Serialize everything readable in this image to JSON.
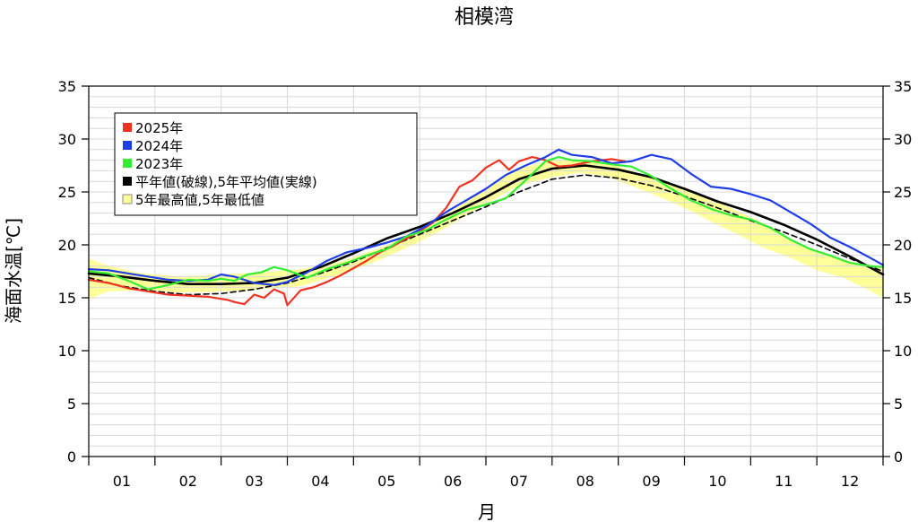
{
  "chart_data": {
    "type": "line",
    "title": "相模湾",
    "xlabel": "月",
    "ylabel": "海面水温[℃]",
    "ylim": [
      0,
      35
    ],
    "yticks": [
      "0",
      "5",
      "10",
      "15",
      "20",
      "25",
      "30",
      "35"
    ],
    "month_labels": [
      "01",
      "02",
      "03",
      "04",
      "05",
      "06",
      "07",
      "08",
      "09",
      "10",
      "11",
      "12"
    ],
    "xlim": [
      0,
      12
    ],
    "grid": true,
    "legend_position": "top-left",
    "legend": [
      {
        "label": "2025年",
        "color": "#ee3322"
      },
      {
        "label": "2024年",
        "color": "#1f3ee6"
      },
      {
        "label": "2023年",
        "color": "#33ee33"
      },
      {
        "label": "平年値(破線),5年平均値(実線)",
        "color": "#000000"
      },
      {
        "label": "5年最高値,5年最低値",
        "color": "#ffff99"
      }
    ],
    "band": {
      "name": "5年最高値,5年最低値",
      "x": [
        0.0,
        0.3,
        0.8,
        1.4,
        2.0,
        2.6,
        3.2,
        3.8,
        4.4,
        5.0,
        5.5,
        6.0,
        6.5,
        7.0,
        7.4,
        7.8,
        8.2,
        8.6,
        9.0,
        9.4,
        9.8,
        10.2,
        10.6,
        11.0,
        11.4,
        11.8,
        12.0
      ],
      "high": [
        18.7,
        18.0,
        17.3,
        17.0,
        17.2,
        17.4,
        17.7,
        18.4,
        19.7,
        21.4,
        23.2,
        25.4,
        27.2,
        28.0,
        28.1,
        27.8,
        27.0,
        26.2,
        25.4,
        24.3,
        23.2,
        22.0,
        20.6,
        19.4,
        18.6,
        18.0,
        17.8
      ],
      "low": [
        14.9,
        15.6,
        15.7,
        15.5,
        15.6,
        15.8,
        16.1,
        17.2,
        18.6,
        20.3,
        22.0,
        23.9,
        25.6,
        26.4,
        26.8,
        26.5,
        25.6,
        24.6,
        23.5,
        22.2,
        21.0,
        19.7,
        18.8,
        17.6,
        16.9,
        15.7,
        15.0
      ]
    },
    "series": [
      {
        "name": "平年値(破線)",
        "color": "#000000",
        "dash": true,
        "x": [
          0.0,
          0.5,
          1.0,
          1.5,
          2.0,
          2.5,
          3.0,
          3.5,
          4.0,
          4.5,
          5.0,
          5.5,
          6.0,
          6.5,
          7.0,
          7.5,
          8.0,
          8.5,
          9.0,
          9.5,
          10.0,
          10.5,
          11.0,
          11.5,
          12.0
        ],
        "y": [
          16.9,
          16.1,
          15.6,
          15.3,
          15.4,
          15.8,
          16.4,
          17.3,
          18.4,
          19.7,
          21.0,
          22.3,
          23.6,
          25.0,
          26.2,
          26.6,
          26.3,
          25.6,
          24.6,
          23.5,
          22.3,
          21.2,
          20.0,
          18.7,
          17.5
        ]
      },
      {
        "name": "5年平均値(実線)",
        "color": "#000000",
        "dash": false,
        "x": [
          0.0,
          0.5,
          1.0,
          1.5,
          2.0,
          2.5,
          3.0,
          3.5,
          4.0,
          4.5,
          5.0,
          5.5,
          6.0,
          6.5,
          7.0,
          7.5,
          8.0,
          8.5,
          9.0,
          9.5,
          10.0,
          10.5,
          11.0,
          11.5,
          12.0
        ],
        "y": [
          17.3,
          17.0,
          16.6,
          16.3,
          16.3,
          16.4,
          16.9,
          17.9,
          19.2,
          20.6,
          21.7,
          23.0,
          24.5,
          26.2,
          27.2,
          27.5,
          27.1,
          26.4,
          25.3,
          24.1,
          23.1,
          21.9,
          20.5,
          18.9,
          17.2
        ]
      },
      {
        "name": "2025年",
        "color": "#ee3322",
        "dash": false,
        "x": [
          0.0,
          0.3,
          0.6,
          0.9,
          1.2,
          1.5,
          1.8,
          2.1,
          2.2,
          2.35,
          2.5,
          2.65,
          2.8,
          2.95,
          3.0,
          3.2,
          3.4,
          3.6,
          3.8,
          4.0,
          4.2,
          4.4,
          4.6,
          4.8,
          5.0,
          5.2,
          5.4,
          5.6,
          5.8,
          6.0,
          6.2,
          6.35,
          6.5,
          6.7,
          6.9,
          7.1,
          7.3,
          7.6,
          7.9,
          8.1
        ],
        "y": [
          16.7,
          16.4,
          15.9,
          15.6,
          15.3,
          15.2,
          15.1,
          14.8,
          14.6,
          14.4,
          15.3,
          15.0,
          15.8,
          15.4,
          14.3,
          15.7,
          16.0,
          16.5,
          17.1,
          17.8,
          18.5,
          19.3,
          19.9,
          20.6,
          21.3,
          22.1,
          23.5,
          25.5,
          26.1,
          27.3,
          28.0,
          27.1,
          27.9,
          28.3,
          28.0,
          27.4,
          27.5,
          27.9,
          28.1,
          27.9
        ]
      },
      {
        "name": "2024年",
        "color": "#1f3ee6",
        "dash": false,
        "x": [
          0.0,
          0.3,
          0.6,
          0.9,
          1.2,
          1.5,
          1.8,
          2.0,
          2.2,
          2.5,
          2.8,
          3.0,
          3.3,
          3.6,
          3.9,
          4.2,
          4.5,
          4.8,
          5.1,
          5.4,
          5.7,
          6.0,
          6.3,
          6.6,
          6.9,
          7.1,
          7.3,
          7.6,
          7.9,
          8.2,
          8.5,
          8.8,
          9.1,
          9.4,
          9.7,
          10.0,
          10.3,
          10.6,
          10.9,
          11.2,
          11.5,
          11.8,
          12.0
        ],
        "y": [
          17.7,
          17.6,
          17.3,
          17.0,
          16.7,
          16.6,
          16.7,
          17.2,
          17.0,
          16.4,
          16.2,
          16.5,
          17.4,
          18.5,
          19.3,
          19.7,
          20.2,
          20.8,
          21.8,
          23.1,
          24.2,
          25.3,
          26.6,
          27.5,
          28.3,
          29.0,
          28.5,
          28.3,
          27.7,
          27.9,
          28.5,
          28.1,
          26.7,
          25.5,
          25.3,
          24.8,
          24.2,
          23.1,
          22.0,
          20.7,
          19.8,
          18.8,
          18.1
        ]
      },
      {
        "name": "2023年",
        "color": "#33ee33",
        "dash": false,
        "x": [
          0.0,
          0.3,
          0.6,
          0.9,
          1.2,
          1.5,
          1.8,
          2.0,
          2.2,
          2.4,
          2.6,
          2.8,
          3.0,
          3.3,
          3.6,
          3.9,
          4.2,
          4.5,
          4.8,
          5.1,
          5.4,
          5.7,
          6.0,
          6.3,
          6.6,
          6.9,
          7.1,
          7.3,
          7.6,
          7.9,
          8.2,
          8.5,
          8.8,
          9.1,
          9.4,
          9.7,
          10.0,
          10.3,
          10.6,
          10.9,
          11.2,
          11.5,
          11.8,
          12.0
        ],
        "y": [
          17.5,
          17.3,
          16.6,
          15.8,
          16.2,
          16.7,
          16.6,
          16.8,
          16.6,
          17.2,
          17.4,
          17.9,
          17.6,
          16.9,
          17.7,
          18.3,
          19.0,
          19.6,
          20.8,
          21.4,
          22.4,
          23.3,
          23.8,
          24.4,
          26.1,
          27.9,
          28.3,
          28.0,
          27.9,
          27.6,
          27.4,
          26.5,
          25.3,
          24.2,
          23.4,
          22.8,
          22.4,
          21.6,
          20.5,
          19.6,
          19.0,
          18.3,
          18.0,
          17.9
        ]
      }
    ]
  }
}
